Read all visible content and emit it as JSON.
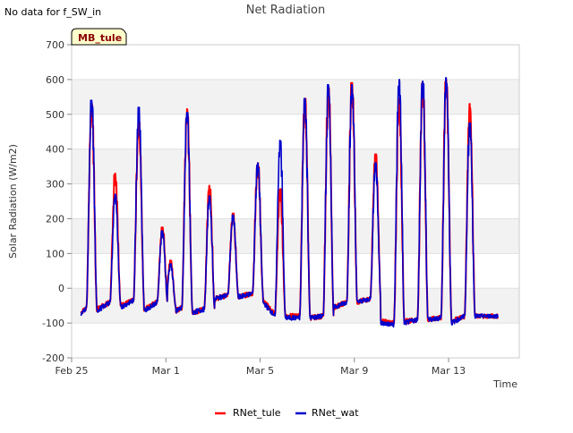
{
  "notice": "No data for f_SW_in",
  "site_badge": "MB_tule",
  "colors": {
    "RNet_tule": "#ff0000",
    "RNet_wat": "#0000cc",
    "band": "#f2f2f2",
    "badge_bg": "#ffffcc"
  },
  "chart_data": {
    "type": "line",
    "title": "Net Radiation",
    "xlabel": "Time",
    "ylabel": "Solar Radiation (W/m2)",
    "xlim": [
      0,
      19
    ],
    "ylim": [
      -200,
      700
    ],
    "yticks": [
      -200,
      -100,
      0,
      100,
      200,
      300,
      400,
      500,
      600,
      700
    ],
    "xticks": [
      {
        "value": 0,
        "label": "Feb 25"
      },
      {
        "value": 4,
        "label": "Mar 1"
      },
      {
        "value": 8,
        "label": "Mar 5"
      },
      {
        "value": 12,
        "label": "Mar 9"
      },
      {
        "value": 16,
        "label": "Mar 13"
      }
    ],
    "legend": [
      "RNet_tule",
      "RNet_wat"
    ],
    "series": [
      {
        "name": "RNet_tule",
        "peaks": [
          [
            0.85,
            530
          ],
          [
            1.85,
            330
          ],
          [
            2.85,
            480
          ],
          [
            3.85,
            175
          ],
          [
            4.2,
            80
          ],
          [
            4.9,
            515
          ],
          [
            5.85,
            295
          ],
          [
            6.85,
            215
          ],
          [
            7.9,
            360
          ],
          [
            8.85,
            285
          ],
          [
            9.9,
            545
          ],
          [
            10.9,
            575
          ],
          [
            11.9,
            590
          ],
          [
            12.9,
            385
          ],
          [
            13.9,
            545
          ],
          [
            14.9,
            590
          ],
          [
            15.9,
            600
          ],
          [
            16.9,
            530
          ]
        ],
        "night": [
          [
            -70,
            -55
          ],
          [
            -60,
            -40
          ],
          [
            -50,
            -35
          ],
          [
            -60,
            -40
          ],
          [
            -45,
            -55
          ],
          [
            -65,
            -55
          ],
          [
            -70,
            -60
          ],
          [
            -30,
            -20
          ],
          [
            -25,
            -15
          ],
          [
            -35,
            -75
          ],
          [
            -80,
            -80
          ],
          [
            -85,
            -80
          ],
          [
            -55,
            -40
          ],
          [
            -40,
            -30
          ],
          [
            -95,
            -100
          ],
          [
            -95,
            -90
          ],
          [
            -90,
            -85
          ],
          [
            -95,
            -80
          ]
        ]
      },
      {
        "name": "RNet_wat",
        "peaks": [
          [
            0.85,
            540
          ],
          [
            1.85,
            270
          ],
          [
            2.85,
            520
          ],
          [
            3.85,
            165
          ],
          [
            4.2,
            70
          ],
          [
            4.9,
            505
          ],
          [
            5.85,
            265
          ],
          [
            6.85,
            210
          ],
          [
            7.9,
            360
          ],
          [
            8.85,
            425
          ],
          [
            9.9,
            545
          ],
          [
            10.9,
            585
          ],
          [
            11.9,
            585
          ],
          [
            12.9,
            360
          ],
          [
            13.9,
            600
          ],
          [
            14.9,
            595
          ],
          [
            15.9,
            605
          ],
          [
            16.9,
            475
          ]
        ],
        "night": [
          [
            -75,
            -55
          ],
          [
            -65,
            -40
          ],
          [
            -55,
            -35
          ],
          [
            -65,
            -40
          ],
          [
            -50,
            -55
          ],
          [
            -65,
            -55
          ],
          [
            -70,
            -60
          ],
          [
            -30,
            -20
          ],
          [
            -25,
            -15
          ],
          [
            -40,
            -80
          ],
          [
            -85,
            -85
          ],
          [
            -85,
            -80
          ],
          [
            -55,
            -40
          ],
          [
            -40,
            -30
          ],
          [
            -100,
            -105
          ],
          [
            -100,
            -90
          ],
          [
            -90,
            -85
          ],
          [
            -100,
            -80
          ]
        ]
      }
    ]
  }
}
